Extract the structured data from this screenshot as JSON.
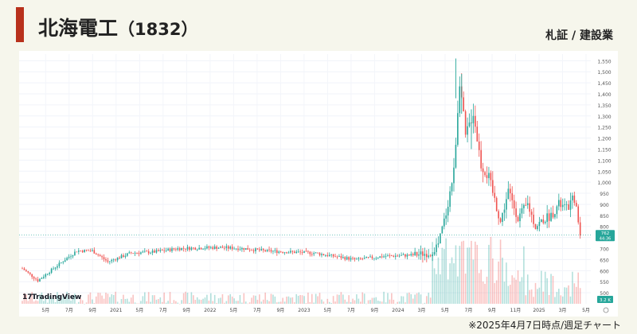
{
  "header": {
    "company": "北海電工",
    "code": "（1832）",
    "market": "札証 / 建設業"
  },
  "logo_text": "TradingView",
  "footnote": "※2025年4月7日時点/週足チャート",
  "colors": {
    "up": "#26a69a",
    "down": "#ef5350",
    "accent": "#b8311c",
    "last_price_bg": "#26a69a"
  },
  "chart_data": {
    "type": "candlestick",
    "title": "",
    "price_axis": {
      "ticks": [
        500,
        550,
        600,
        650,
        700,
        750,
        800,
        850,
        900,
        950,
        1000,
        1050,
        1100,
        1150,
        1200,
        1250,
        1300,
        1350,
        1400,
        1450,
        1500,
        1550
      ],
      "range": [
        450,
        1580
      ]
    },
    "time_labels": [
      "5月",
      "7月",
      "9月",
      "2021",
      "5月",
      "7月",
      "9月",
      "2022",
      "5月",
      "7月",
      "9月",
      "2023",
      "5月",
      "7月",
      "9月",
      "2024",
      "3月",
      "5月",
      "7月",
      "9月",
      "11月",
      "2025",
      "3月",
      "5月"
    ],
    "last_price": {
      "price": "762",
      "time": "44:36"
    },
    "volume_label": "3.2 K",
    "anchors": [
      {
        "t": 0,
        "p": 610
      },
      {
        "t": 8,
        "p": 555
      },
      {
        "t": 16,
        "p": 610
      },
      {
        "t": 28,
        "p": 690
      },
      {
        "t": 36,
        "p": 690
      },
      {
        "t": 44,
        "p": 640
      },
      {
        "t": 56,
        "p": 680
      },
      {
        "t": 68,
        "p": 685
      },
      {
        "t": 80,
        "p": 700
      },
      {
        "t": 100,
        "p": 705
      },
      {
        "t": 114,
        "p": 700
      },
      {
        "t": 124,
        "p": 690
      },
      {
        "t": 136,
        "p": 685
      },
      {
        "t": 150,
        "p": 680
      },
      {
        "t": 164,
        "p": 660
      },
      {
        "t": 172,
        "p": 650
      },
      {
        "t": 186,
        "p": 665
      },
      {
        "t": 200,
        "p": 670
      },
      {
        "t": 210,
        "p": 680
      },
      {
        "t": 214,
        "p": 720
      },
      {
        "t": 218,
        "p": 860
      },
      {
        "t": 222,
        "p": 1050
      },
      {
        "t": 225,
        "p": 1470
      },
      {
        "t": 228,
        "p": 1200
      },
      {
        "t": 232,
        "p": 1320
      },
      {
        "t": 236,
        "p": 1080
      },
      {
        "t": 240,
        "p": 1020
      },
      {
        "t": 246,
        "p": 820
      },
      {
        "t": 250,
        "p": 960
      },
      {
        "t": 255,
        "p": 840
      },
      {
        "t": 260,
        "p": 900
      },
      {
        "t": 264,
        "p": 800
      },
      {
        "t": 268,
        "p": 830
      },
      {
        "t": 272,
        "p": 850
      },
      {
        "t": 276,
        "p": 900
      },
      {
        "t": 280,
        "p": 880
      },
      {
        "t": 284,
        "p": 930
      },
      {
        "t": 287,
        "p": 762
      }
    ],
    "spikes": [
      {
        "t": 223,
        "p": 1560
      },
      {
        "t": 226,
        "p": 1490
      },
      {
        "t": 231,
        "p": 1330
      }
    ]
  }
}
